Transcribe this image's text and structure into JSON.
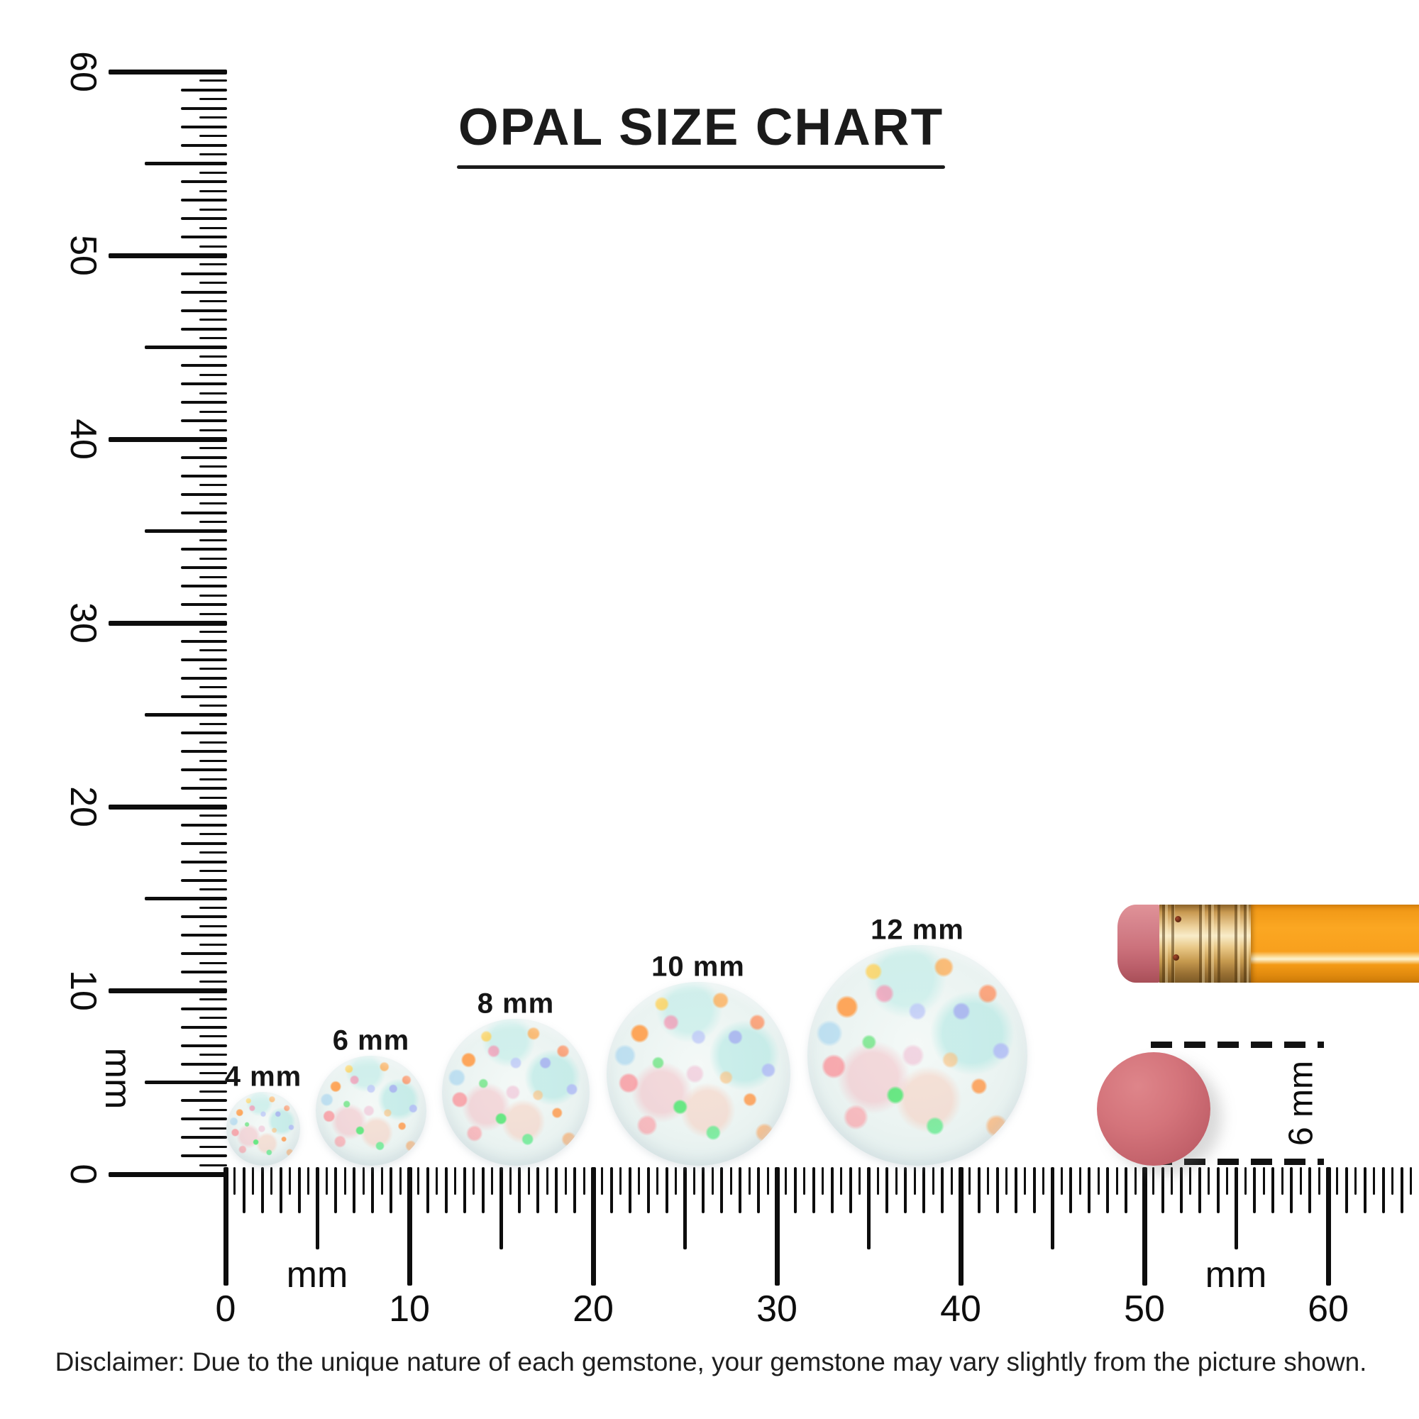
{
  "title": "OPAL SIZE CHART",
  "colors": {
    "ink": "#0d0d0d",
    "pencil_body": "#f9a11b",
    "pencil_eraser": "#cf747e",
    "pencil_ferrule": "#e3bd7a",
    "disc": "#cf6a70",
    "opal_base": "#ecf4f2"
  },
  "vertical_ruler": {
    "unit_label": "mm",
    "tick_labels": [
      "60",
      "50",
      "40",
      "30",
      "20",
      "10",
      "0"
    ]
  },
  "horizontal_ruler": {
    "unit_labels": [
      "mm",
      "mm"
    ],
    "tick_labels": [
      "0",
      "10",
      "20",
      "30",
      "40",
      "50",
      "60"
    ]
  },
  "opals": [
    {
      "label": "4 mm",
      "size_mm": 4
    },
    {
      "label": "6 mm",
      "size_mm": 6
    },
    {
      "label": "8 mm",
      "size_mm": 8
    },
    {
      "label": "10 mm",
      "size_mm": 10
    },
    {
      "label": "12 mm",
      "size_mm": 12
    }
  ],
  "comparison": {
    "disc_label": "6 mm",
    "disc_size_mm": 6
  },
  "disclaimer": "Disclaimer: Due to the unique nature of each gemstone, your gemstone may vary slightly from the picture shown.",
  "chart_data": {
    "type": "table",
    "title": "OPAL SIZE CHART",
    "categories": [
      "4 mm",
      "6 mm",
      "8 mm",
      "10 mm",
      "12 mm"
    ],
    "values": [
      4,
      6,
      8,
      10,
      12
    ],
    "units": "mm",
    "ruler_range_mm": [
      0,
      60
    ],
    "reference_objects": [
      "pencil with eraser",
      "6 mm coral disc"
    ]
  }
}
